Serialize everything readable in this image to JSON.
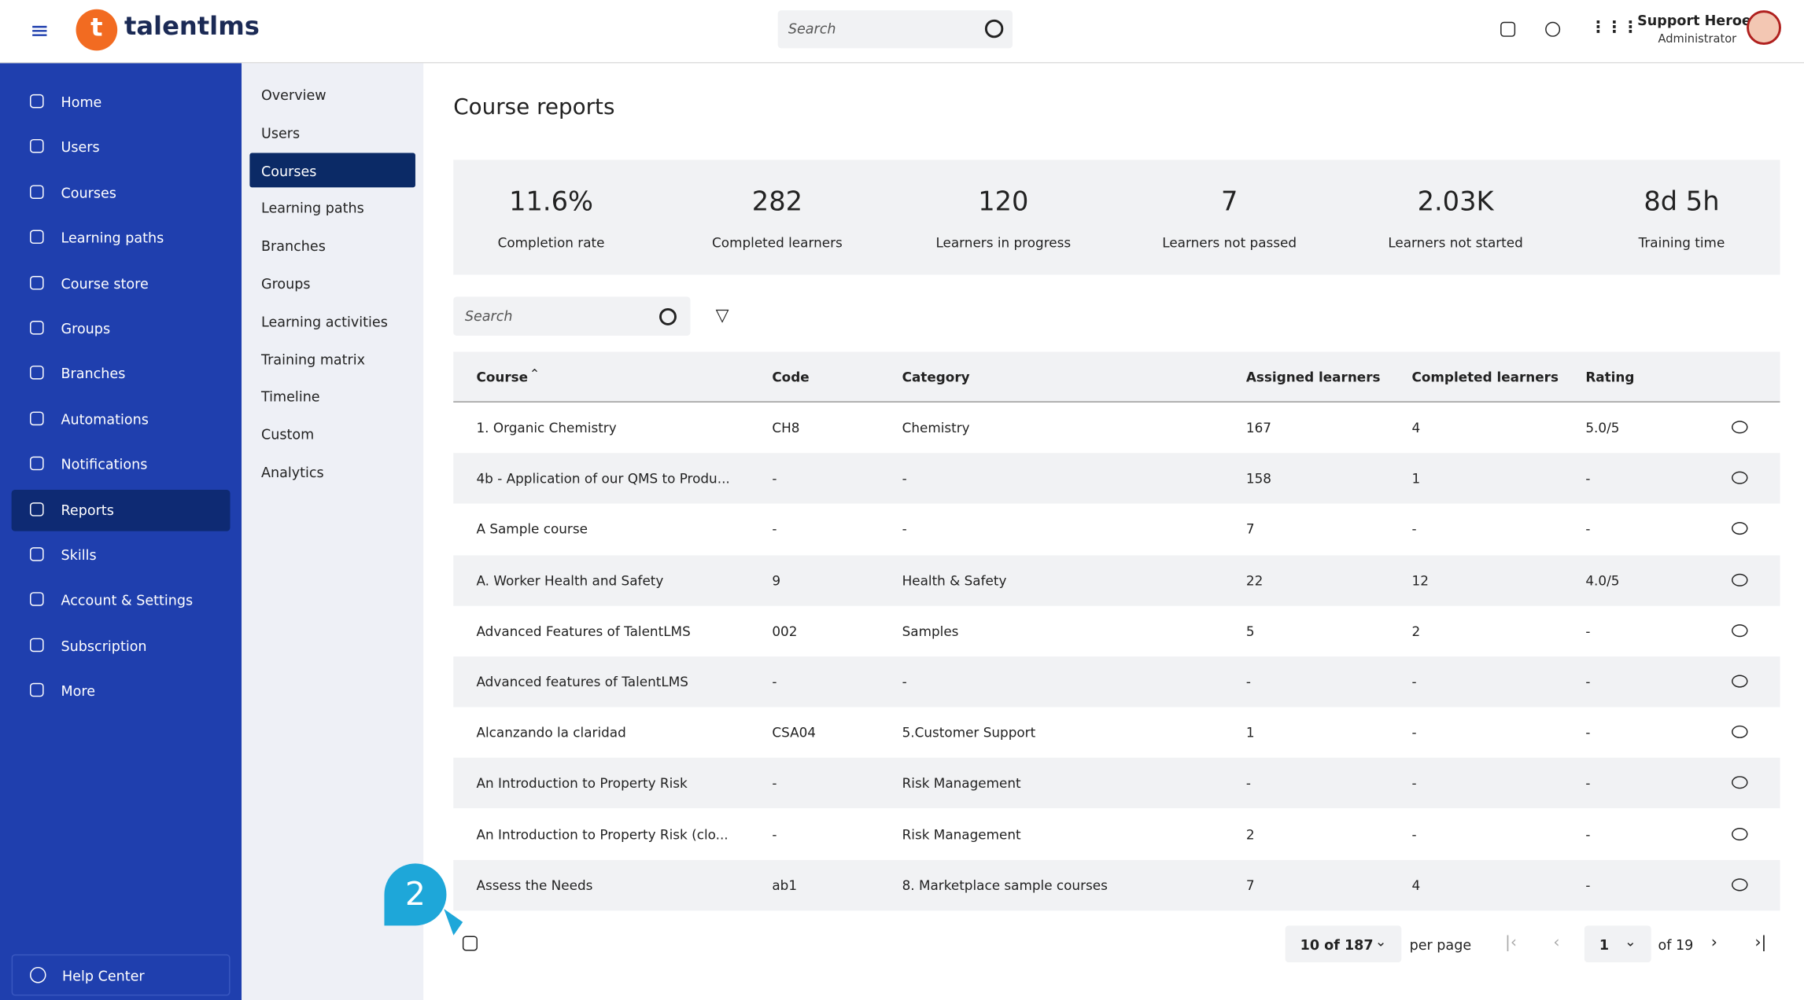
{
  "header": {
    "logo": "talentlms",
    "search_placeholder": "Search",
    "user_name": "Support Heroes",
    "user_role": "Administrator"
  },
  "sidebar": {
    "items": [
      "Home",
      "Users",
      "Courses",
      "Learning paths",
      "Course store",
      "Groups",
      "Branches",
      "Automations",
      "Notifications",
      "Reports",
      "Skills",
      "Account & Settings",
      "Subscription",
      "More"
    ],
    "active": "Reports",
    "help": "Help Center"
  },
  "subnav": {
    "items": [
      "Overview",
      "Users",
      "Courses",
      "Learning paths",
      "Branches",
      "Groups",
      "Learning activities",
      "Training matrix",
      "Timeline",
      "Custom",
      "Analytics"
    ],
    "active": "Courses"
  },
  "main": {
    "title": "Course reports",
    "stats": [
      {
        "value": "11.6%",
        "label": "Completion rate"
      },
      {
        "value": "282",
        "label": "Completed learners"
      },
      {
        "value": "120",
        "label": "Learners in progress"
      },
      {
        "value": "7",
        "label": "Learners not passed"
      },
      {
        "value": "2.03K",
        "label": "Learners not started"
      },
      {
        "value": "8d 5h",
        "label": "Training time"
      }
    ],
    "search_placeholder": "Search",
    "table": {
      "columns": [
        "Course",
        "Code",
        "Category",
        "Assigned learners",
        "Completed learners",
        "Rating"
      ],
      "rows": [
        [
          "1. Organic Chemistry",
          "CH8",
          "Chemistry",
          "167",
          "4",
          "5.0/5"
        ],
        [
          "4b - Application of our QMS to Produ...",
          "-",
          "-",
          "158",
          "1",
          "-"
        ],
        [
          "A Sample course",
          "-",
          "-",
          "7",
          "-",
          "-"
        ],
        [
          "A. Worker Health and Safety",
          "9",
          "Health & Safety",
          "22",
          "12",
          "4.0/5"
        ],
        [
          "Advanced Features of TalentLMS",
          "002",
          "Samples",
          "5",
          "2",
          "-"
        ],
        [
          "Advanced features of TalentLMS",
          "-",
          "-",
          "-",
          "-",
          "-"
        ],
        [
          "Alcanzando la claridad",
          "CSA04",
          "5.Customer Support",
          "1",
          "-",
          "-"
        ],
        [
          "An Introduction to Property Risk",
          "-",
          "Risk Management",
          "-",
          "-",
          "-"
        ],
        [
          "An Introduction to Property Risk (clo...",
          "-",
          "Risk Management",
          "2",
          "-",
          "-"
        ],
        [
          "Assess the Needs",
          "ab1",
          "8. Marketplace sample courses",
          "7",
          "4",
          "-"
        ]
      ]
    },
    "annotation": "2",
    "pagination": {
      "page_size": "10 of 187",
      "per_page_label": "per page",
      "page": "1",
      "of_pages": "of 19"
    }
  }
}
